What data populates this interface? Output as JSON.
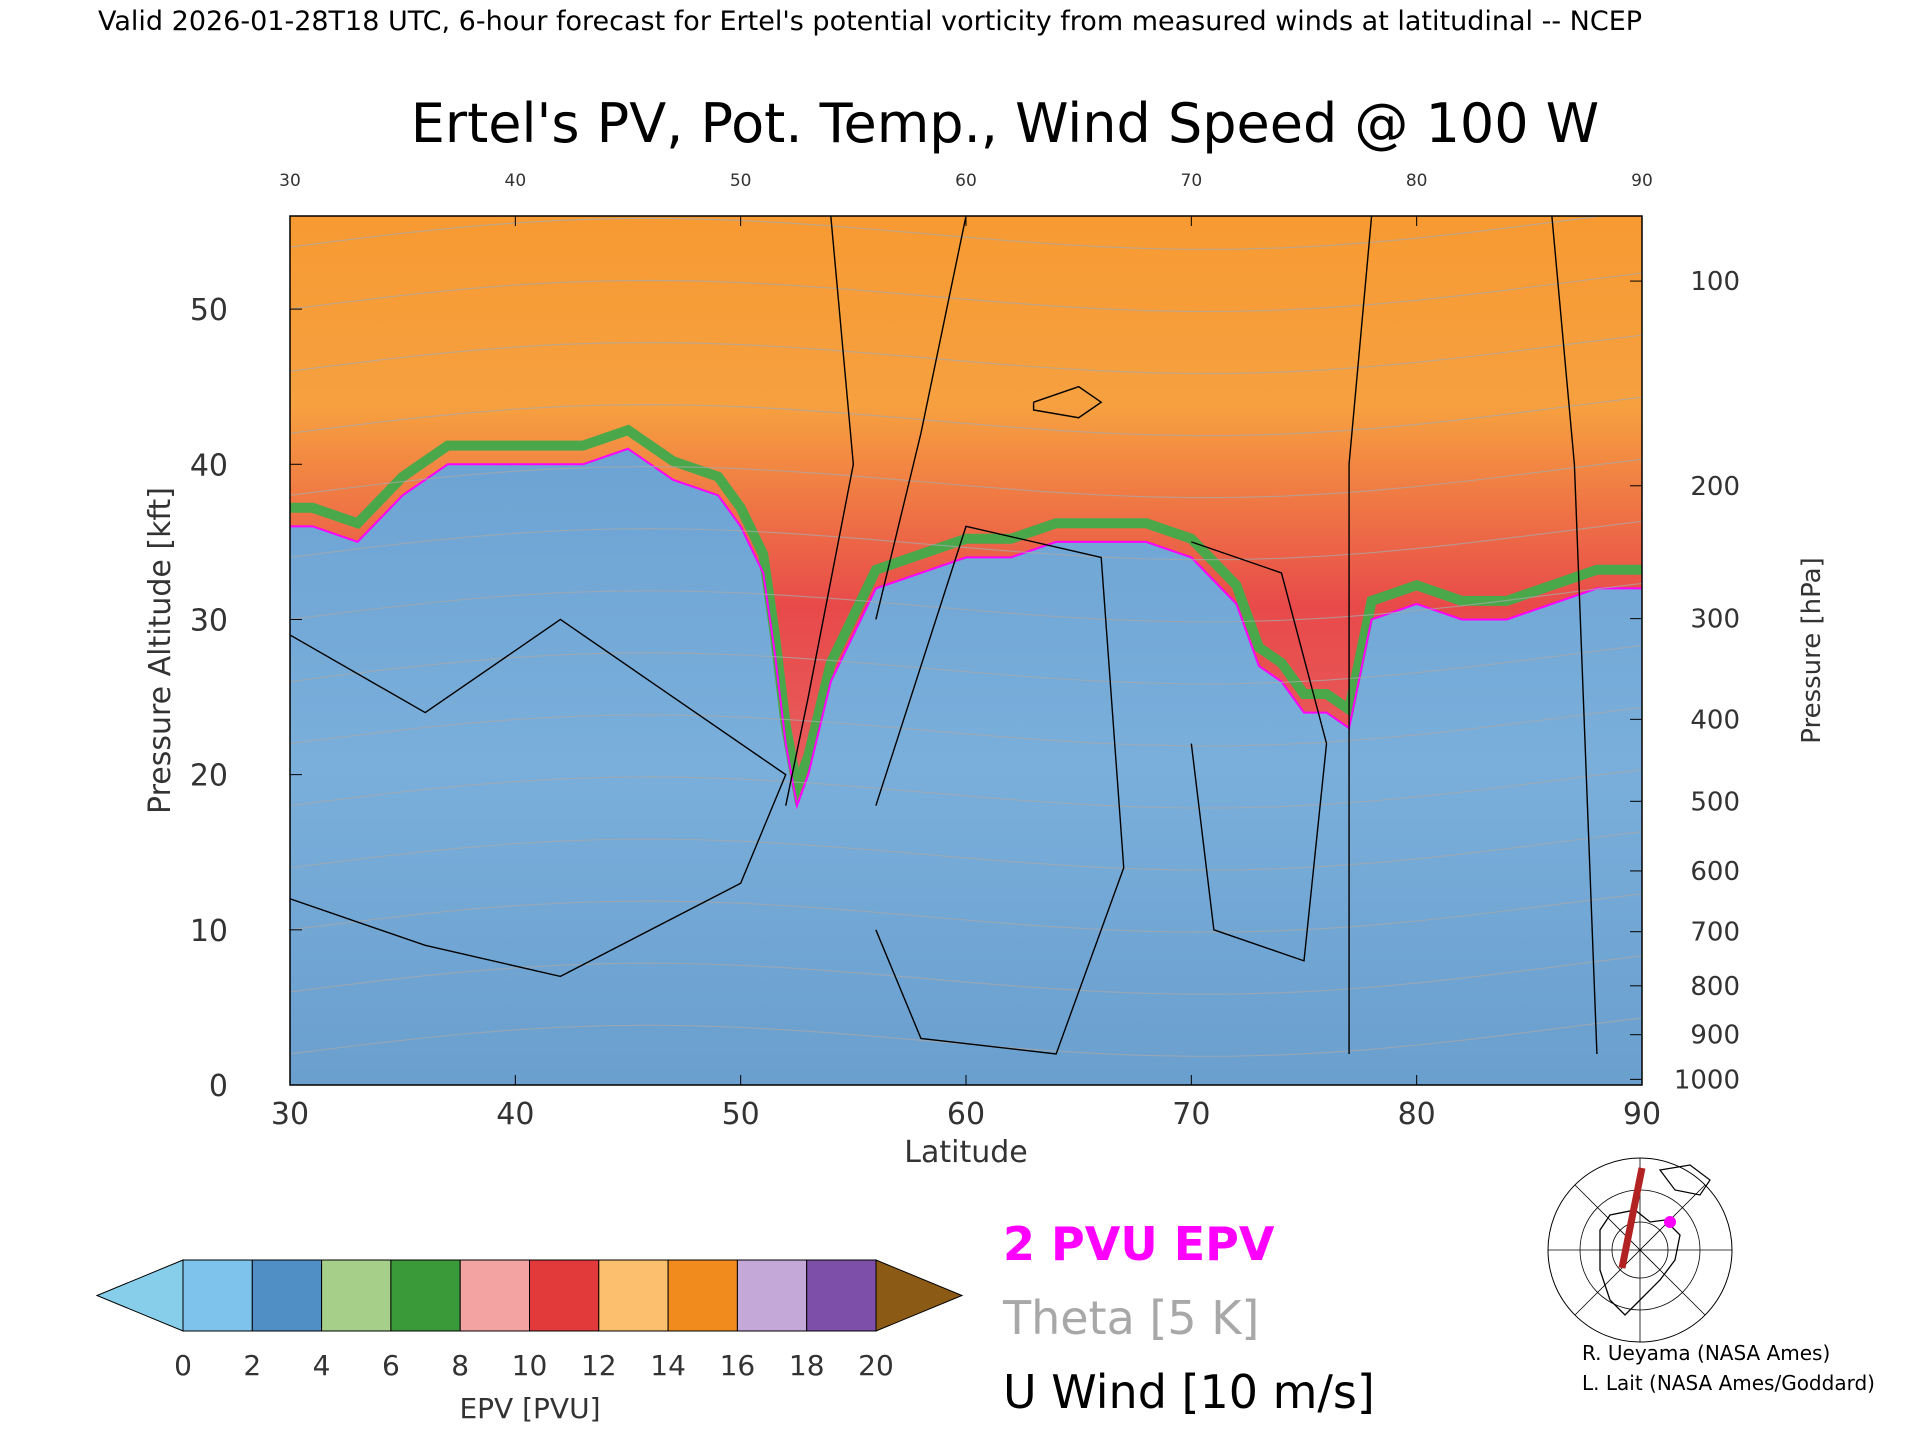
{
  "header": "Valid 2026-01-28T18 UTC, 6-hour forecast for Ertel's potential vorticity from measured winds at latitudinal -- NCEP",
  "chart_data": {
    "type": "heatmap",
    "title": "Ertel's PV, Pot. Temp., Wind Speed @ 100 W",
    "xlabel": "Latitude",
    "ylabel_left": "Pressure Altitude [kft]",
    "ylabel_right": "Pressure [hPa]",
    "xlim": [
      30,
      90
    ],
    "ylim_kft": [
      0,
      56
    ],
    "x_ticks": [
      30,
      40,
      50,
      60,
      70,
      80,
      90
    ],
    "y_ticks_kft": [
      0,
      10,
      20,
      30,
      40,
      50
    ],
    "pressure_ticks_hpa": [
      100,
      200,
      300,
      400,
      500,
      600,
      700,
      800,
      900,
      1000
    ],
    "pv_boundary_2pvu": {
      "lat": [
        30,
        31,
        33,
        35,
        37,
        39,
        41,
        43,
        45,
        47,
        49,
        50,
        51,
        51.5,
        52,
        52.5,
        53,
        54,
        56,
        58,
        60,
        62,
        64,
        66,
        68,
        70,
        72,
        73,
        74,
        75,
        76,
        77,
        78,
        80,
        82,
        84,
        86,
        88,
        90
      ],
      "kft": [
        36,
        36,
        35,
        38,
        40,
        40,
        40,
        40,
        41,
        39,
        38,
        36,
        33,
        28,
        22,
        18,
        20,
        26,
        32,
        33,
        34,
        34,
        35,
        35,
        35,
        34,
        31,
        27,
        26,
        24,
        24,
        23,
        30,
        31,
        30,
        30,
        31,
        32,
        32
      ]
    },
    "epv_colorbar": {
      "label": "EPV [PVU]",
      "ticks": [
        0,
        2,
        4,
        6,
        8,
        10,
        12,
        14,
        16,
        18,
        20
      ],
      "colors": [
        "#7ec3ec",
        "#4f8fc6",
        "#a6cf8a",
        "#3a9a3a",
        "#f4a3a3",
        "#e23a3a",
        "#fcbf6e",
        "#f28b1e",
        "#c3a8d8",
        "#7e4fa8",
        "#f5eeb0"
      ],
      "under_color": "#87ceeb",
      "over_color": "#8b5a14"
    },
    "legend": [
      {
        "label": "2 PVU EPV",
        "color": "#ff00ff"
      },
      {
        "label": "Theta [5 K]",
        "color": "#a8a8a8"
      },
      {
        "label": "U Wind [10 m/s]",
        "color": "#000000"
      }
    ]
  },
  "credits": [
    "R. Ueyama (NASA Ames)",
    "L. Lait (NASA Ames/Goddard)"
  ],
  "colors": {
    "tropo_blue": "#76a9d4",
    "strat_green": "#4aa84a",
    "strat_red": "#e84a4a",
    "strat_orange": "#f79a32",
    "pv_contour": "#ff00ff",
    "theta_contour": "#a8a8a8"
  }
}
